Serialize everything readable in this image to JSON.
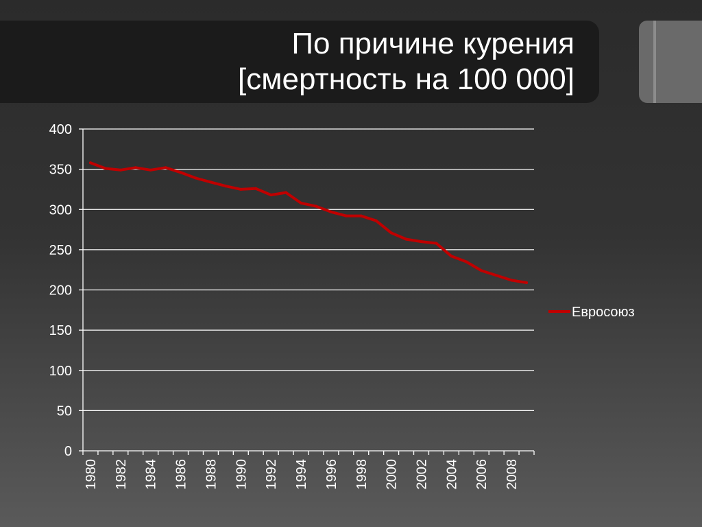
{
  "slide": {
    "title_line1": "По причине курения",
    "title_line2": "[смертность на 100 000]"
  },
  "colors": {
    "line": "#c00000",
    "grid": "#ffffff",
    "text": "#ffffff",
    "title_band": "#1b1b1b"
  },
  "chart_data": {
    "type": "line",
    "title": "",
    "xlabel": "",
    "ylabel": "",
    "ylim": [
      0,
      400
    ],
    "yticks": [
      0,
      50,
      100,
      150,
      200,
      250,
      300,
      350,
      400
    ],
    "x": [
      1980,
      1981,
      1982,
      1983,
      1984,
      1985,
      1986,
      1987,
      1988,
      1989,
      1990,
      1991,
      1992,
      1993,
      1994,
      1995,
      1996,
      1997,
      1998,
      1999,
      2000,
      2001,
      2002,
      2003,
      2004,
      2005,
      2006,
      2007,
      2008,
      2009
    ],
    "xtick_labels": [
      "1980",
      "1982",
      "1984",
      "1986",
      "1988",
      "1990",
      "1992",
      "1994",
      "1996",
      "1998",
      "2000",
      "2002",
      "2004",
      "2006",
      "2008"
    ],
    "grid": true,
    "legend": "right",
    "series": [
      {
        "name": "Евросоюз",
        "values": [
          358,
          351,
          349,
          352,
          349,
          352,
          346,
          339,
          334,
          329,
          325,
          326,
          318,
          321,
          308,
          304,
          297,
          292,
          292,
          286,
          271,
          263,
          260,
          258,
          242,
          235,
          224,
          218,
          212,
          209
        ]
      }
    ]
  }
}
